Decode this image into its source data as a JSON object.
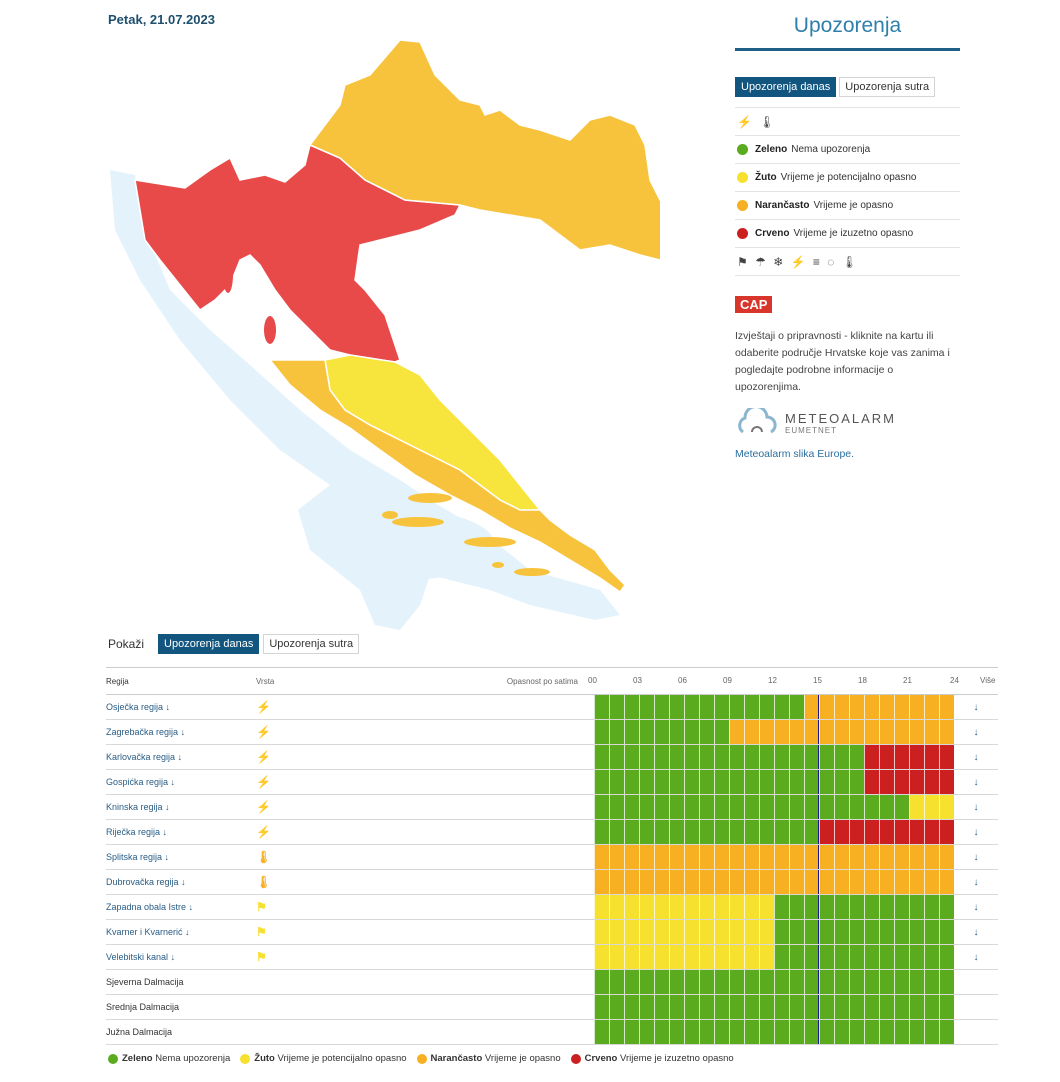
{
  "date": "Petak, 21.07.2023",
  "panel": {
    "title": "Upozorenja",
    "tab_today": "Upozorenja danas",
    "tab_tomorrow": "Upozorenja sutra",
    "levels": [
      {
        "name": "Zeleno",
        "desc": "Nema upozorenja",
        "color": "#5aab1e"
      },
      {
        "name": "Žuto",
        "desc": "Vrijeme je potencijalno opasno",
        "color": "#f6e12f"
      },
      {
        "name": "Narančasto",
        "desc": "Vrijeme je opasno",
        "color": "#f6b021"
      },
      {
        "name": "Crveno",
        "desc": "Vrijeme je izuzetno opasno",
        "color": "#cc1f1f"
      }
    ],
    "cap_label": "CAP",
    "description": "Izvještaji o pripravnosti - kliknite na kartu ili odaberite područje Hrvatske koje vas zanima i pogledajte podrobne informacije o upozorenjima.",
    "meteoalarm": "METEOALARM",
    "eumetnet": "EUMETNET",
    "europe_alt": "Meteoalarm slika Europe."
  },
  "lower": {
    "show_label": "Pokaži",
    "tab_today": "Upozorenja danas",
    "tab_tomorrow": "Upozorenja sutra"
  },
  "table": {
    "col_region": "Regija",
    "col_type": "Vrsta",
    "col_hours": "Opasnost po satima",
    "col_more": "Više",
    "hour_ticks": [
      "00",
      "03",
      "06",
      "09",
      "12",
      "15",
      "18",
      "21",
      "24"
    ],
    "current_hour": 15,
    "regions": [
      {
        "name": "Osječka regija",
        "link": true,
        "type": "thunderstorm",
        "type_color": "#f6b021",
        "levels": "000000000000002222222222"
      },
      {
        "name": "Zagrebačka regija",
        "link": true,
        "type": "thunderstorm",
        "type_color": "#f6b021",
        "levels": "000000000222222222222222"
      },
      {
        "name": "Karlovačka regija",
        "link": true,
        "type": "thunderstorm",
        "type_color": "#cc1f1f",
        "levels": "000000000000000000333333"
      },
      {
        "name": "Gospićka regija",
        "link": true,
        "type": "thunderstorm",
        "type_color": "#cc1f1f",
        "levels": "000000000000000000333333"
      },
      {
        "name": "Kninska regija",
        "link": true,
        "type": "thunderstorm",
        "type_color": "#f6e12f",
        "levels": "000000000000000000000111"
      },
      {
        "name": "Riječka regija",
        "link": true,
        "type": "thunderstorm",
        "type_color": "#cc1f1f",
        "levels": "000000000000000333333333"
      },
      {
        "name": "Splitska regija",
        "link": true,
        "type": "heat",
        "type_color": "#f6b021",
        "levels": "222222222222222222222222"
      },
      {
        "name": "Dubrovačka regija",
        "link": true,
        "type": "heat",
        "type_color": "#f6b021",
        "levels": "222222222222222222222222"
      },
      {
        "name": "Zapadna obala Istre",
        "link": true,
        "type": "wind",
        "type_color": "#f6e12f",
        "levels": "111111111111000000000000"
      },
      {
        "name": "Kvarner i Kvarnerić",
        "link": true,
        "type": "wind",
        "type_color": "#f6e12f",
        "levels": "111111111111000000000000"
      },
      {
        "name": "Velebitski kanal",
        "link": true,
        "type": "wind",
        "type_color": "#f6e12f",
        "levels": "111111111111000000000000"
      },
      {
        "name": "Sjeverna Dalmacija",
        "link": false,
        "type": "",
        "type_color": "",
        "levels": "000000000000000000000000"
      },
      {
        "name": "Srednja Dalmacija",
        "link": false,
        "type": "",
        "type_color": "",
        "levels": "000000000000000000000000"
      },
      {
        "name": "Južna Dalmacija",
        "link": false,
        "type": "",
        "type_color": "",
        "levels": "000000000000000000000000"
      }
    ]
  },
  "icons": {
    "thunderstorm": "thunderstorm-icon",
    "heat": "high-temperature-icon",
    "wind": "wind-icon",
    "more": "arrow-down-icon"
  },
  "map_colors": {
    "sea": "#e4f2fb",
    "red": "#e84a4a",
    "orange": "#f8c33c",
    "yellow": "#f7e43c"
  }
}
